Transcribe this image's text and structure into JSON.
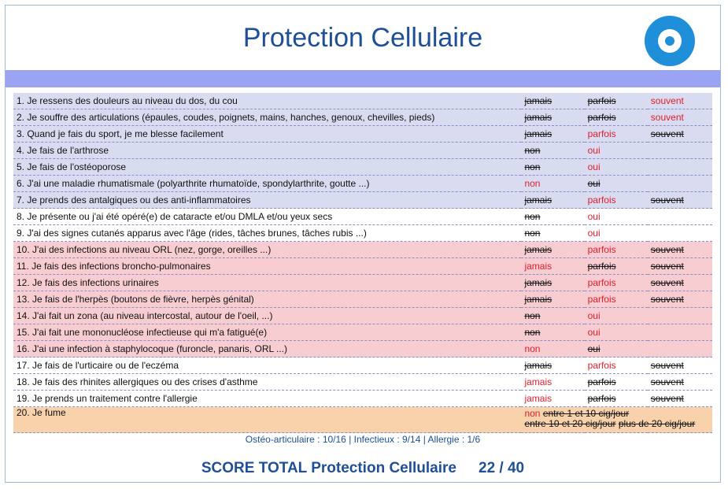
{
  "header": {
    "title": "Protection Cellulaire",
    "logo_icon": "eye-target-icon",
    "accent_color": "#1e8fd8"
  },
  "rows": [
    {
      "text": "1. Je ressens des douleurs au niveau du dos, du cou",
      "group": "blue",
      "options": [
        {
          "label": "jamais",
          "selected": false
        },
        {
          "label": "parfois",
          "selected": false
        },
        {
          "label": "souvent",
          "selected": true
        }
      ]
    },
    {
      "text": "2. Je souffre des articulations (épaules, coudes, poignets, mains, hanches, genoux, chevilles, pieds)",
      "group": "blue",
      "options": [
        {
          "label": "jamais",
          "selected": false
        },
        {
          "label": "parfois",
          "selected": false
        },
        {
          "label": "souvent",
          "selected": true
        }
      ]
    },
    {
      "text": "3. Quand je fais du sport, je me blesse facilement",
      "group": "blue",
      "options": [
        {
          "label": "jamais",
          "selected": false
        },
        {
          "label": "parfois",
          "selected": true
        },
        {
          "label": "souvent",
          "selected": false
        }
      ]
    },
    {
      "text": "4. Je fais de l'arthrose",
      "group": "blue",
      "options": [
        {
          "label": "non",
          "selected": false
        },
        {
          "label": "oui",
          "selected": true
        }
      ]
    },
    {
      "text": "5. Je fais de l'ostéoporose",
      "group": "blue",
      "options": [
        {
          "label": "non",
          "selected": false
        },
        {
          "label": "oui",
          "selected": true
        }
      ]
    },
    {
      "text": "6. J'ai une maladie rhumatismale (polyarthrite rhumatoïde, spondylarthrite, goutte ...)",
      "group": "blue",
      "options": [
        {
          "label": "non",
          "selected": true
        },
        {
          "label": "oui",
          "selected": false
        }
      ]
    },
    {
      "text": "7. Je prends des antalgiques ou des anti-inflammatoires",
      "group": "blue",
      "options": [
        {
          "label": "jamais",
          "selected": false
        },
        {
          "label": "parfois",
          "selected": true
        },
        {
          "label": "souvent",
          "selected": false
        }
      ]
    },
    {
      "text": "8. Je présente ou j'ai été opéré(e) de cataracte et/ou DMLA et/ou yeux secs",
      "group": "white",
      "options": [
        {
          "label": "non",
          "selected": false
        },
        {
          "label": "oui",
          "selected": true
        }
      ]
    },
    {
      "text": "9. J'ai des signes cutanés apparus avec l'âge (rides, tâches brunes, tâches rubis ...)",
      "group": "white",
      "options": [
        {
          "label": "non",
          "selected": false
        },
        {
          "label": "oui",
          "selected": true
        }
      ]
    },
    {
      "text": "10. J'ai des infections au niveau ORL (nez, gorge, oreilles ...)",
      "group": "pink",
      "options": [
        {
          "label": "jamais",
          "selected": false
        },
        {
          "label": "parfois",
          "selected": true
        },
        {
          "label": "souvent",
          "selected": false
        }
      ]
    },
    {
      "text": "11. Je fais des infections broncho-pulmonaires",
      "group": "pink",
      "options": [
        {
          "label": "jamais",
          "selected": true
        },
        {
          "label": "parfois",
          "selected": false
        },
        {
          "label": "souvent",
          "selected": false
        }
      ]
    },
    {
      "text": "12. Je fais des infections urinaires",
      "group": "pink",
      "options": [
        {
          "label": "jamais",
          "selected": false
        },
        {
          "label": "parfois",
          "selected": true
        },
        {
          "label": "souvent",
          "selected": false
        }
      ]
    },
    {
      "text": "13. Je fais de l'herpès (boutons de fièvre, herpès génital)",
      "group": "pink",
      "options": [
        {
          "label": "jamais",
          "selected": false
        },
        {
          "label": "parfois",
          "selected": true
        },
        {
          "label": "souvent",
          "selected": false
        }
      ]
    },
    {
      "text": "14. J'ai fait un zona (au niveau intercostal, autour de l'oeil, ...)",
      "group": "pink",
      "options": [
        {
          "label": "non",
          "selected": false
        },
        {
          "label": "oui",
          "selected": true
        }
      ]
    },
    {
      "text": "15. J'ai fait une mononucléose infectieuse qui m'a fatigué(e)",
      "group": "pink",
      "options": [
        {
          "label": "non",
          "selected": false
        },
        {
          "label": "oui",
          "selected": true
        }
      ]
    },
    {
      "text": "16. J'ai une infection à staphylocoque (furoncle, panaris, ORL ...)",
      "group": "pink",
      "options": [
        {
          "label": "non",
          "selected": true
        },
        {
          "label": "oui",
          "selected": false
        }
      ]
    },
    {
      "text": "17. Je fais de l'urticaire ou de l'eczéma",
      "group": "white",
      "options": [
        {
          "label": "jamais",
          "selected": false
        },
        {
          "label": "parfois",
          "selected": true
        },
        {
          "label": "souvent",
          "selected": false
        }
      ]
    },
    {
      "text": "18. Je fais des rhinites allergiques ou des crises d'asthme",
      "group": "white",
      "options": [
        {
          "label": "jamais",
          "selected": true
        },
        {
          "label": "parfois",
          "selected": false
        },
        {
          "label": "souvent",
          "selected": false
        }
      ]
    },
    {
      "text": "19. Je prends un traitement contre l'allergie",
      "group": "white",
      "options": [
        {
          "label": "jamais",
          "selected": true
        },
        {
          "label": "parfois",
          "selected": false
        },
        {
          "label": "souvent",
          "selected": false
        }
      ]
    }
  ],
  "smoking": {
    "text": "20. Je fume",
    "options": [
      {
        "label": "non",
        "selected": true
      },
      {
        "label": "entre 1 et 10 cig/jour",
        "selected": false
      },
      {
        "label": "entre 10 et 20 cig/jour",
        "selected": false
      },
      {
        "label": "plus de 20 cig/jour",
        "selected": false
      }
    ]
  },
  "summary": "Ostéo-articulaire : 10/16 | Infectieux : 9/14 | Allergie : 1/6",
  "score": {
    "label": "SCORE TOTAL Protection Cellulaire",
    "value": "22 / 40"
  },
  "colors": {
    "title": "#1f4f96",
    "selected": "#e11d2c",
    "band": "#9aa4f2",
    "blue_group": "#d9dcf1",
    "pink_group": "#f8cdd1",
    "orange_group": "#f8d2aa"
  }
}
